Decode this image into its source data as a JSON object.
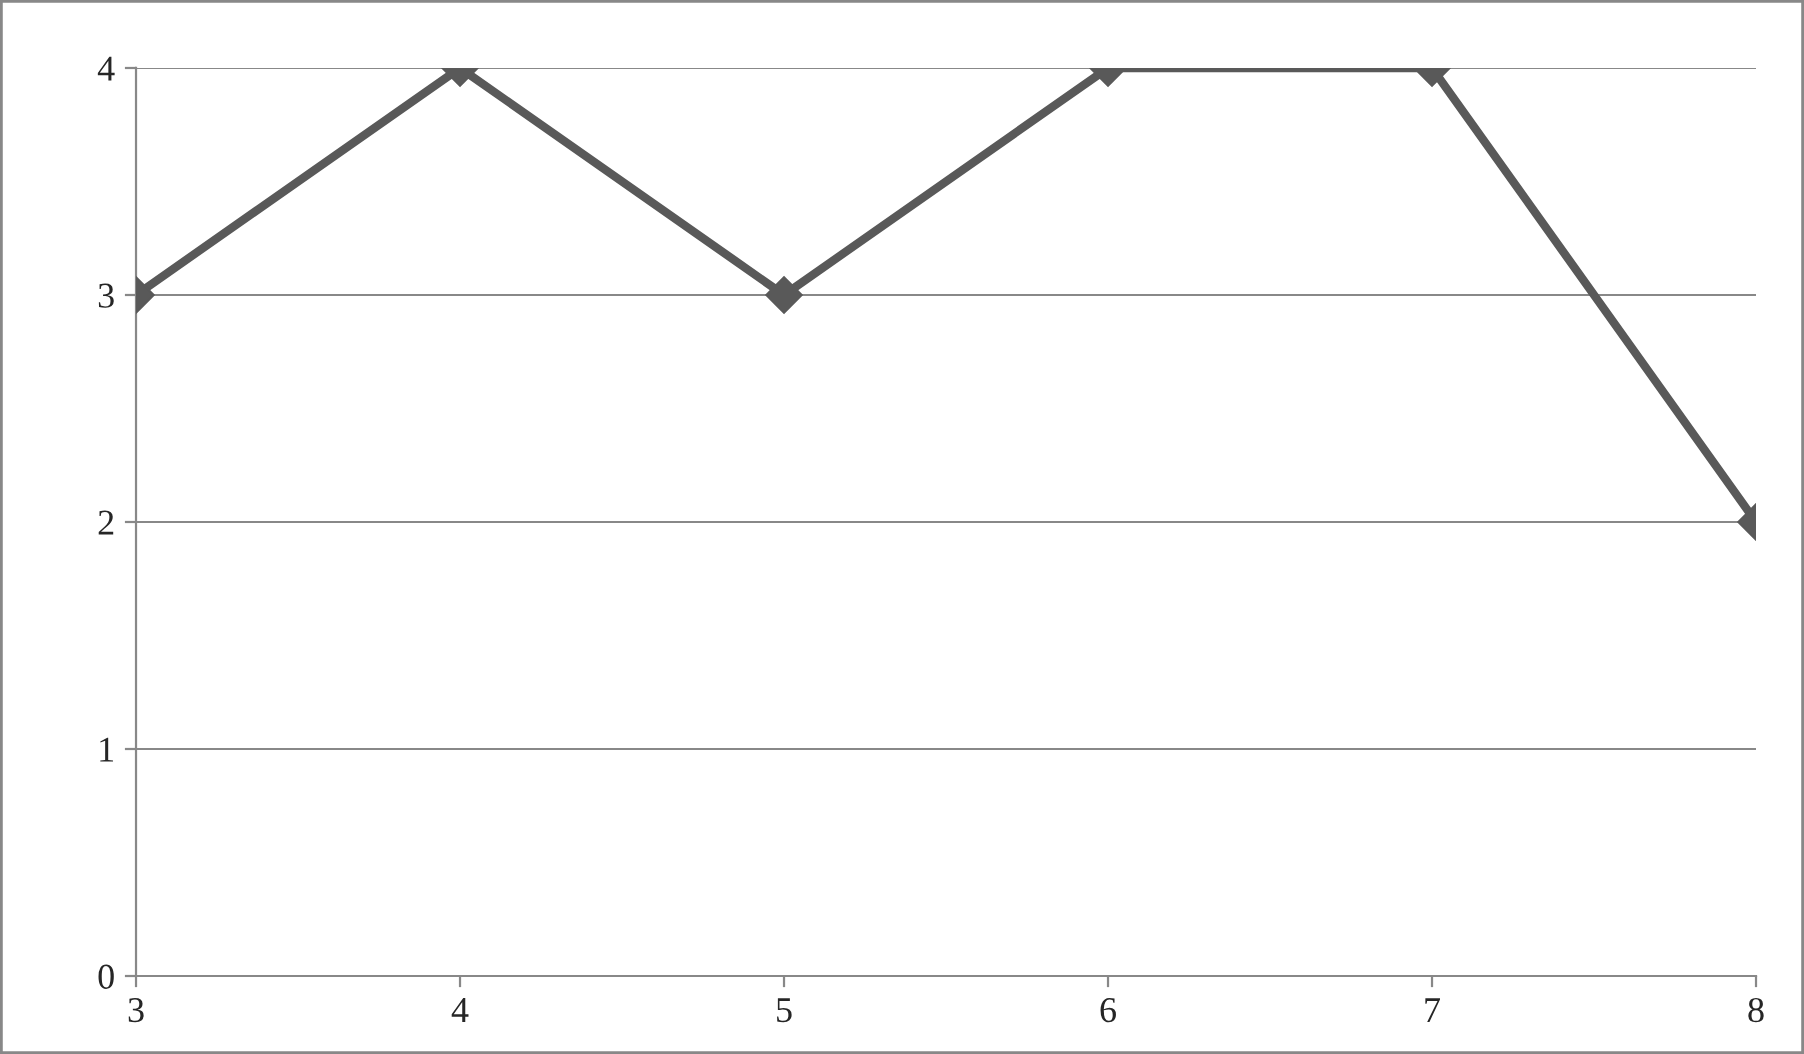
{
  "chart_data": {
    "type": "line",
    "x": [
      3,
      4,
      5,
      6,
      7,
      8
    ],
    "series": [
      {
        "color": "#595959",
        "values": [
          3,
          4,
          3,
          4,
          4,
          2
        ]
      }
    ],
    "xlim": [
      3,
      8
    ],
    "xticks": [
      3,
      4,
      5,
      6,
      7,
      8
    ],
    "ylim": [
      0,
      4
    ],
    "yticks": [
      0,
      1,
      2,
      3,
      4
    ],
    "grid": "y",
    "legend": false,
    "marker": "diamond",
    "line_style": "solid"
  }
}
